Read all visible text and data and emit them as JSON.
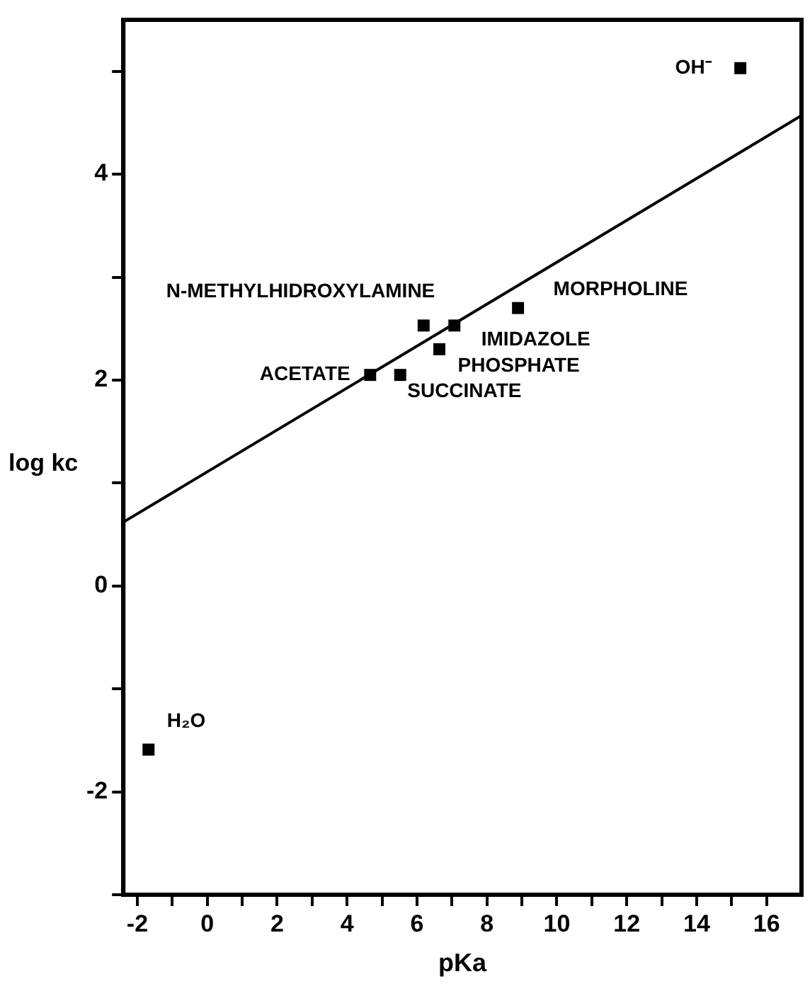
{
  "chart_data": {
    "type": "scatter",
    "xlabel": "pKa",
    "ylabel": "log kc",
    "x": [
      15.25,
      -1.68,
      4.66,
      5.52,
      6.19,
      7.07,
      6.64,
      8.89
    ],
    "series": [
      {
        "color": "#000000",
        "marker": "square",
        "values": [
          5.03,
          -1.59,
          2.05,
          2.05,
          2.53,
          2.53,
          2.3,
          2.7
        ]
      },
      {
        "type": "line",
        "color": "#000000",
        "marker": "none",
        "x": [
          -2.4,
          17
        ],
        "values": [
          0.62,
          4.57
        ]
      }
    ],
    "annotations": [
      {
        "text": "OH⁻",
        "x": 15.25,
        "y": 5.03
      },
      {
        "text": "H₂O",
        "x": -1.68,
        "y": -1.59
      },
      {
        "text": "ACETATE",
        "x": 4.66,
        "y": 2.05
      },
      {
        "text": "SUCCINATE",
        "x": 5.52,
        "y": 2.05
      },
      {
        "text": "N-METHYLHIDROXYLAMINE",
        "x": 6.19,
        "y": 2.53
      },
      {
        "text": "IMIDAZOLE",
        "x": 7.07,
        "y": 2.53
      },
      {
        "text": "PHOSPHATE",
        "x": 6.64,
        "y": 2.3
      },
      {
        "text": "MORPHOLINE",
        "x": 8.89,
        "y": 2.7
      }
    ],
    "xlim": [
      -2.4,
      17
    ],
    "ylim": [
      -3,
      5.5
    ],
    "xticks": [
      -2,
      {
        "value": -1,
        "label": null
      },
      0,
      {
        "value": 1,
        "label": null
      },
      2,
      {
        "value": 3,
        "label": null
      },
      4,
      {
        "value": 5,
        "label": null
      },
      6,
      {
        "value": 7,
        "label": null
      },
      8,
      {
        "value": 9,
        "label": null
      },
      10,
      {
        "value": 11,
        "label": null
      },
      12,
      {
        "value": 13,
        "label": null
      },
      14,
      {
        "value": 15,
        "label": null
      },
      16
    ],
    "yticks": [
      {
        "value": -3,
        "label": null
      },
      -2,
      {
        "value": -1,
        "label": null
      },
      0,
      {
        "value": 1,
        "label": null
      },
      2,
      {
        "value": 3,
        "label": null
      },
      4,
      {
        "value": 5,
        "label": null
      }
    ],
    "grid": false,
    "legend": false
  }
}
